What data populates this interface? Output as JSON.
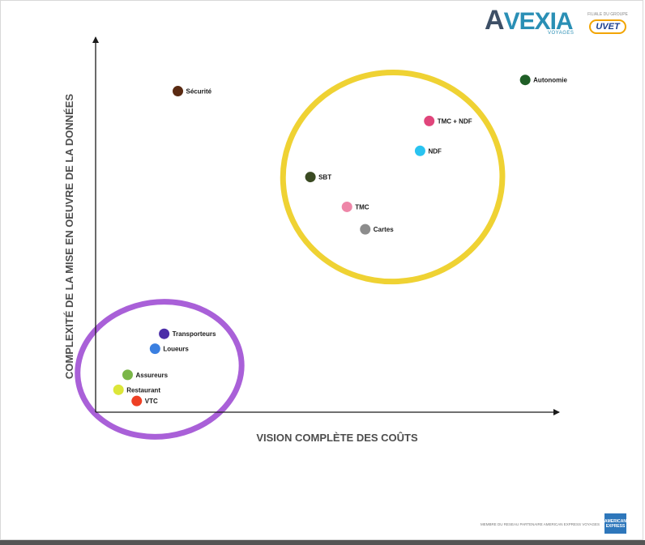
{
  "branding": {
    "logo_a": "A",
    "logo_rest": "VEXIA",
    "logo_sub": "VOYAGES",
    "subsidiary_text": "FILIALE DU GROUPE",
    "uvet": "UVET",
    "footer": "MEMBRE DU RESEAU PARTENAIRE AMERICAN EXPRESS VOYAGES",
    "amex": "AMERICAN EXPRESS",
    "colors": {
      "logo_dark": "#3d4f66",
      "logo_blue": "#2a8fb5",
      "uvet_ring": "#f2a400",
      "amex_blue": "#2e77bb"
    }
  },
  "chart_data": {
    "type": "scatter",
    "title": "",
    "xlabel": "VISION COMPLÈTE DES COÛTS",
    "ylabel": "COMPLEXITÉ DE LA MISE EN OEUVRE DE LA DONNÉES",
    "xlim": [
      0,
      100
    ],
    "ylim": [
      0,
      100
    ],
    "grid": false,
    "points": [
      {
        "label": "Sécurité",
        "x": 18,
        "y": 86,
        "color": "#5a2a12"
      },
      {
        "label": "Autonomie",
        "x": 94,
        "y": 89,
        "color": "#1f5e26"
      },
      {
        "label": "TMC + NDF",
        "x": 73,
        "y": 78,
        "color": "#e0457b"
      },
      {
        "label": "NDF",
        "x": 71,
        "y": 70,
        "color": "#29c3f0"
      },
      {
        "label": "SBT",
        "x": 47,
        "y": 63,
        "color": "#3a4a22"
      },
      {
        "label": "TMC",
        "x": 55,
        "y": 55,
        "color": "#ee86a8"
      },
      {
        "label": "Cartes",
        "x": 59,
        "y": 49,
        "color": "#8c8c8c"
      },
      {
        "label": "Transporteurs",
        "x": 15,
        "y": 21,
        "color": "#4b2da8"
      },
      {
        "label": "Loueurs",
        "x": 13,
        "y": 17,
        "color": "#3a7fe0"
      },
      {
        "label": "Assureurs",
        "x": 7,
        "y": 10,
        "color": "#7ab648"
      },
      {
        "label": "Restaurant",
        "x": 5,
        "y": 6,
        "color": "#dce639"
      },
      {
        "label": "VTC",
        "x": 9,
        "y": 3,
        "color": "#ee4024"
      }
    ],
    "clusters": [
      {
        "name": "cluster-high",
        "cx": 65,
        "cy": 63,
        "rx": 24,
        "ry": 28,
        "color": "#efd233"
      },
      {
        "name": "cluster-low",
        "cx": 14,
        "cy": 11.5,
        "rx": 18,
        "ry": 18,
        "color": "#a960d8"
      }
    ]
  }
}
